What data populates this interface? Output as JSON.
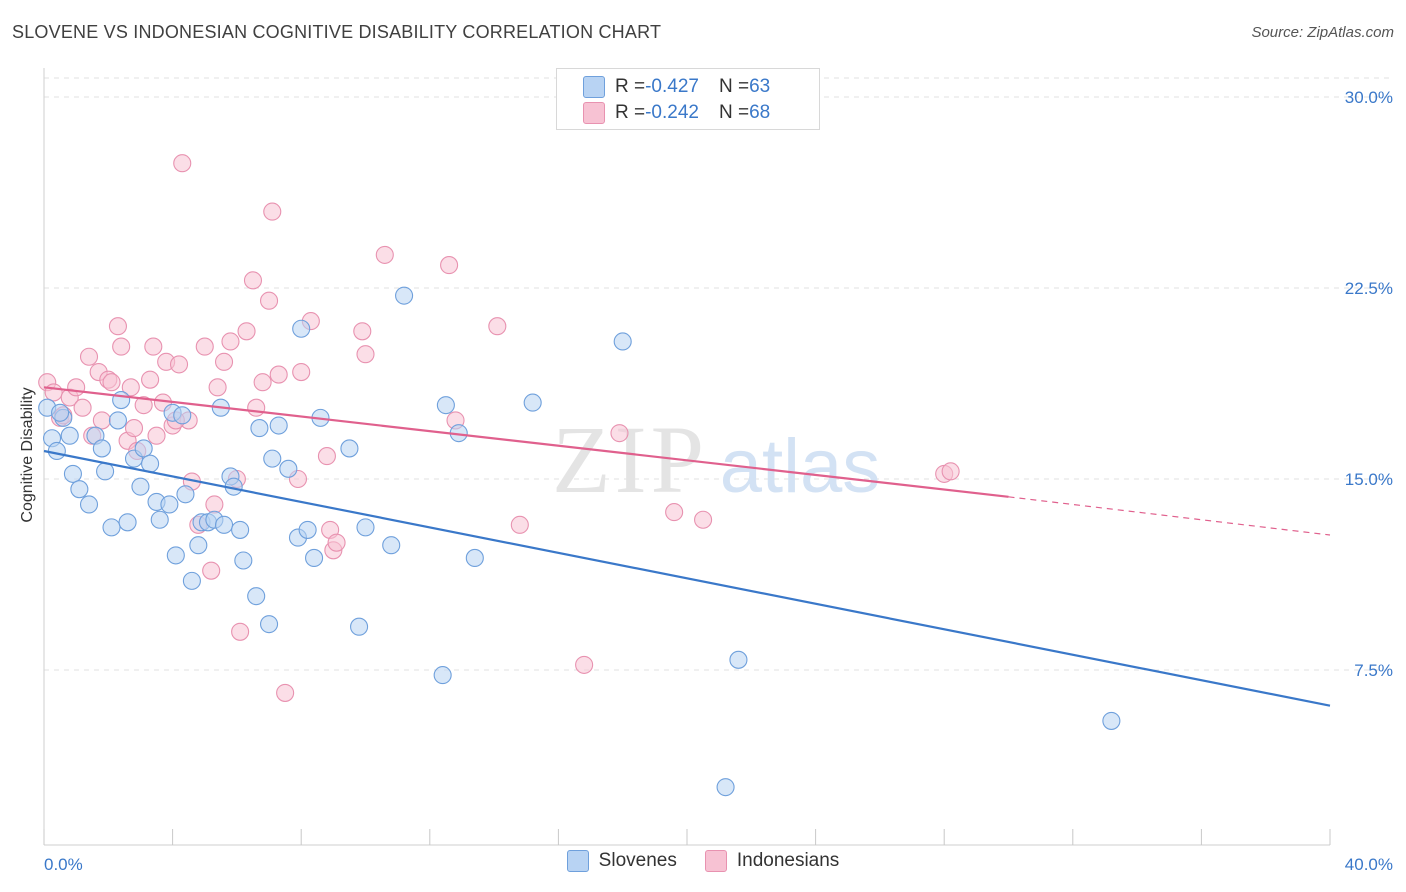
{
  "header": {
    "title": "SLOVENE VS INDONESIAN COGNITIVE DISABILITY CORRELATION CHART",
    "source": "Source: ZipAtlas.com"
  },
  "watermark": {
    "zip": "ZIP",
    "atlas": "atlas"
  },
  "colors": {
    "blue": "#3a78c9",
    "blue_fill": "#b8d3f3",
    "pink": "#e0608d",
    "pink_fill": "#f7c2d3",
    "tick_text": "#3a78c9",
    "grid": "#e2e2e2"
  },
  "legend_top": {
    "rows": [
      {
        "r_label": "R = ",
        "r_value": "-0.427",
        "n_label": "N = ",
        "n_value": "63"
      },
      {
        "r_label": "R = ",
        "r_value": "-0.242",
        "n_label": "N = ",
        "n_value": "68"
      }
    ]
  },
  "legend_bottom": {
    "items": [
      {
        "label": "Slovenes"
      },
      {
        "label": "Indonesians"
      }
    ]
  },
  "chart_data": {
    "type": "scatter",
    "title": "SLOVENE VS INDONESIAN COGNITIVE DISABILITY CORRELATION CHART",
    "xlabel": "",
    "ylabel": "Cognitive Disability",
    "xlim": [
      0,
      40
    ],
    "ylim": [
      0,
      31.5
    ],
    "x_tick_labels": [
      "0.0%",
      "40.0%"
    ],
    "y_ticks": [
      7.5,
      15.0,
      22.5,
      30.0
    ],
    "y_tick_labels": [
      "7.5%",
      "15.0%",
      "22.5%",
      "30.0%"
    ],
    "grid": "horizontal dashed",
    "legend_position": "top-center",
    "series": [
      {
        "name": "Slovenes",
        "r": -0.427,
        "n": 63,
        "trend": {
          "x": [
            0,
            40
          ],
          "y": [
            16.1,
            6.1
          ]
        },
        "points": [
          [
            0.1,
            17.8
          ],
          [
            0.25,
            16.6
          ],
          [
            0.4,
            16.1
          ],
          [
            0.6,
            17.4
          ],
          [
            0.8,
            16.7
          ],
          [
            0.9,
            15.2
          ],
          [
            1.1,
            14.6
          ],
          [
            1.4,
            14.0
          ],
          [
            1.6,
            16.7
          ],
          [
            1.8,
            16.2
          ],
          [
            1.9,
            15.3
          ],
          [
            2.1,
            13.1
          ],
          [
            2.3,
            17.3
          ],
          [
            2.4,
            18.1
          ],
          [
            2.6,
            13.3
          ],
          [
            2.8,
            15.8
          ],
          [
            3.0,
            14.7
          ],
          [
            3.1,
            16.2
          ],
          [
            3.3,
            15.6
          ],
          [
            3.5,
            14.1
          ],
          [
            3.6,
            13.4
          ],
          [
            3.9,
            14.0
          ],
          [
            4.0,
            17.6
          ],
          [
            4.1,
            12.0
          ],
          [
            4.3,
            17.5
          ],
          [
            4.4,
            14.4
          ],
          [
            4.6,
            11.0
          ],
          [
            4.8,
            12.4
          ],
          [
            4.9,
            13.3
          ],
          [
            5.1,
            13.3
          ],
          [
            5.3,
            13.4
          ],
          [
            5.5,
            17.8
          ],
          [
            5.6,
            13.2
          ],
          [
            5.8,
            15.1
          ],
          [
            5.9,
            14.7
          ],
          [
            6.1,
            13.0
          ],
          [
            6.2,
            11.8
          ],
          [
            6.6,
            10.4
          ],
          [
            6.7,
            17.0
          ],
          [
            7.0,
            9.3
          ],
          [
            7.1,
            15.8
          ],
          [
            7.3,
            17.1
          ],
          [
            7.6,
            15.4
          ],
          [
            7.9,
            12.7
          ],
          [
            8.0,
            20.9
          ],
          [
            8.2,
            13.0
          ],
          [
            8.4,
            11.9
          ],
          [
            8.6,
            17.4
          ],
          [
            9.5,
            16.2
          ],
          [
            9.8,
            9.2
          ],
          [
            10.0,
            13.1
          ],
          [
            10.8,
            12.4
          ],
          [
            11.2,
            22.2
          ],
          [
            12.4,
            7.3
          ],
          [
            12.5,
            17.9
          ],
          [
            12.9,
            16.8
          ],
          [
            13.4,
            11.9
          ],
          [
            15.2,
            18.0
          ],
          [
            18.0,
            20.4
          ],
          [
            21.2,
            2.9
          ],
          [
            21.6,
            7.9
          ],
          [
            33.2,
            5.5
          ],
          [
            0.5,
            17.6
          ]
        ]
      },
      {
        "name": "Indonesians",
        "r": -0.242,
        "n": 68,
        "trend": {
          "x": [
            0,
            30.0
          ],
          "y": [
            18.6,
            14.3
          ],
          "dashed_to": {
            "x": 40,
            "y": 12.8
          }
        },
        "points": [
          [
            0.1,
            18.8
          ],
          [
            0.3,
            18.4
          ],
          [
            0.5,
            17.4
          ],
          [
            0.6,
            17.5
          ],
          [
            0.8,
            18.2
          ],
          [
            1.0,
            18.6
          ],
          [
            1.2,
            17.8
          ],
          [
            1.4,
            19.8
          ],
          [
            1.5,
            16.7
          ],
          [
            1.7,
            19.2
          ],
          [
            1.8,
            17.3
          ],
          [
            2.0,
            18.9
          ],
          [
            2.1,
            18.8
          ],
          [
            2.3,
            21.0
          ],
          [
            2.4,
            20.2
          ],
          [
            2.6,
            16.5
          ],
          [
            2.7,
            18.6
          ],
          [
            2.9,
            16.1
          ],
          [
            3.1,
            17.9
          ],
          [
            3.3,
            18.9
          ],
          [
            3.4,
            20.2
          ],
          [
            3.5,
            16.7
          ],
          [
            3.7,
            18.0
          ],
          [
            3.8,
            19.6
          ],
          [
            4.0,
            17.1
          ],
          [
            4.2,
            19.5
          ],
          [
            4.3,
            27.4
          ],
          [
            4.5,
            17.3
          ],
          [
            4.6,
            14.9
          ],
          [
            4.8,
            13.2
          ],
          [
            5.0,
            20.2
          ],
          [
            5.2,
            11.4
          ],
          [
            5.3,
            14.0
          ],
          [
            5.4,
            18.6
          ],
          [
            5.6,
            19.6
          ],
          [
            5.8,
            20.4
          ],
          [
            6.0,
            15.0
          ],
          [
            6.1,
            9.0
          ],
          [
            6.3,
            20.8
          ],
          [
            6.5,
            22.8
          ],
          [
            6.6,
            17.8
          ],
          [
            6.8,
            18.8
          ],
          [
            7.0,
            22.0
          ],
          [
            7.1,
            25.5
          ],
          [
            7.3,
            19.1
          ],
          [
            7.5,
            6.6
          ],
          [
            7.9,
            15.0
          ],
          [
            8.0,
            19.2
          ],
          [
            8.3,
            21.2
          ],
          [
            8.8,
            15.9
          ],
          [
            8.9,
            13.0
          ],
          [
            9.0,
            12.2
          ],
          [
            9.1,
            12.5
          ],
          [
            9.9,
            20.8
          ],
          [
            10.0,
            19.9
          ],
          [
            10.6,
            23.8
          ],
          [
            12.6,
            23.4
          ],
          [
            12.8,
            17.3
          ],
          [
            14.1,
            21.0
          ],
          [
            14.8,
            13.2
          ],
          [
            16.8,
            7.7
          ],
          [
            17.9,
            16.8
          ],
          [
            19.6,
            13.7
          ],
          [
            20.5,
            13.4
          ],
          [
            28.0,
            15.2
          ],
          [
            28.2,
            15.3
          ],
          [
            2.8,
            17.0
          ],
          [
            4.1,
            17.3
          ]
        ]
      }
    ]
  }
}
